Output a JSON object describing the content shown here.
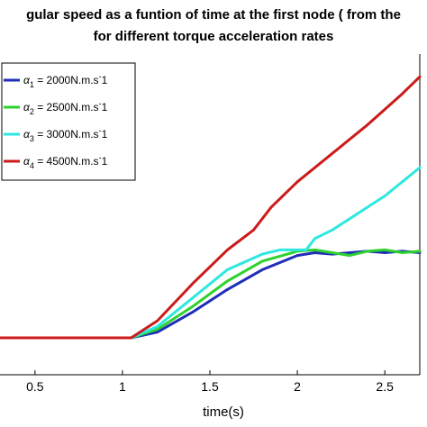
{
  "title_line_1": "gular speed as a funtion of time at the first node ( from the",
  "title_line_2": "for different torque acceleration rates",
  "chart_data": {
    "type": "line",
    "title": "gular speed as a funtion of time at the first node ( from the for different torque acceleration rates",
    "xlabel": "time(s)",
    "ylabel": "",
    "xlim": [
      0.3,
      2.7
    ],
    "ylim": [
      0,
      1
    ],
    "x_ticks": [
      "0.5",
      "1",
      "1.5",
      "2",
      "2.5"
    ],
    "x_tick_values": [
      0.5,
      1,
      1.5,
      2,
      2.5
    ],
    "grid": false,
    "legend_position": "top-left",
    "series": [
      {
        "name": "α₁ = 2000N.m.s⁻1",
        "legend_symbol": "α",
        "legend_sub": "1",
        "legend_rest": " = 2000N.m.s",
        "legend_sup": "-",
        "legend_tail": "1",
        "color": "#1f2db8",
        "x": [
          0.3,
          1.05,
          1.2,
          1.4,
          1.6,
          1.8,
          2.0,
          2.1,
          2.2,
          2.3,
          2.4,
          2.5,
          2.6,
          2.7
        ],
        "y": [
          0.0,
          0.0,
          0.02,
          0.09,
          0.17,
          0.24,
          0.29,
          0.3,
          0.295,
          0.3,
          0.305,
          0.3,
          0.305,
          0.3
        ]
      },
      {
        "name": "α₂ = 2500N.m.s⁻1",
        "legend_symbol": "α",
        "legend_sub": "2",
        "legend_rest": " = 2500N.m.s",
        "legend_sup": "-",
        "legend_tail": "1",
        "color": "#2ed12e",
        "x": [
          0.3,
          1.05,
          1.2,
          1.4,
          1.6,
          1.8,
          2.0,
          2.1,
          2.2,
          2.3,
          2.4,
          2.5,
          2.6,
          2.7
        ],
        "y": [
          0.0,
          0.0,
          0.03,
          0.11,
          0.2,
          0.27,
          0.305,
          0.31,
          0.3,
          0.29,
          0.305,
          0.31,
          0.3,
          0.305
        ]
      },
      {
        "name": "α₃ = 3000N.m.s⁻1",
        "legend_symbol": "α",
        "legend_sub": "3",
        "legend_rest": " = 3000N.m.s",
        "legend_sup": "-",
        "legend_tail": "1",
        "color": "#2ee8e0",
        "x": [
          0.3,
          1.05,
          1.2,
          1.4,
          1.6,
          1.8,
          1.9,
          2.0,
          2.05,
          2.1,
          2.2,
          2.3,
          2.4,
          2.5,
          2.6,
          2.7
        ],
        "y": [
          0.0,
          0.0,
          0.04,
          0.14,
          0.24,
          0.295,
          0.31,
          0.31,
          0.31,
          0.35,
          0.38,
          0.42,
          0.46,
          0.5,
          0.55,
          0.6
        ]
      },
      {
        "name": "α₄ = 4500N.m.s⁻1",
        "legend_symbol": "α",
        "legend_sub": "4",
        "legend_rest": " = 4500N.m.s",
        "legend_sup": "-",
        "legend_tail": "1",
        "color": "#cc1b1b",
        "x": [
          0.3,
          1.05,
          1.2,
          1.4,
          1.6,
          1.75,
          1.85,
          2.0,
          2.2,
          2.4,
          2.6,
          2.7
        ],
        "y": [
          0.0,
          0.0,
          0.06,
          0.19,
          0.31,
          0.38,
          0.46,
          0.55,
          0.65,
          0.75,
          0.86,
          0.92
        ]
      }
    ]
  }
}
